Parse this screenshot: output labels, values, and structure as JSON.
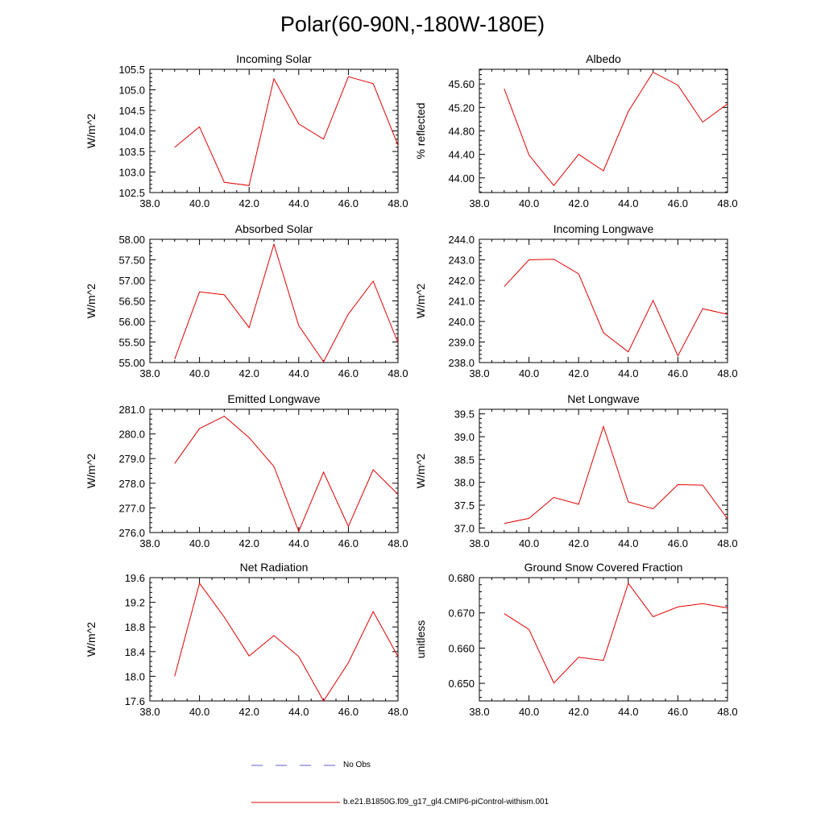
{
  "page_title": "Polar(60-90N,-180W-180E)",
  "legend": {
    "no_obs_label": "No Obs",
    "model_label": "b.e21.B1850G.f09_g17_gl4.CMIP6-piControl-withism.001",
    "no_obs_color": "#5b5bd6",
    "model_color": "#e00000"
  },
  "chart_data": [
    {
      "type": "line",
      "title": "Incoming Solar",
      "xlabel": "",
      "ylabel": "W/m^2",
      "xlim": [
        38,
        48
      ],
      "ylim": [
        102.5,
        105.5
      ],
      "x_ticks": [
        "38.0",
        "40.0",
        "42.0",
        "44.0",
        "46.0",
        "48.0"
      ],
      "y_ticks": [
        "102.5",
        "103.0",
        "103.5",
        "104.0",
        "104.5",
        "105.0",
        "105.5"
      ],
      "series": [
        {
          "name": "b.e21.B1850G.f09_g17_gl4.CMIP6-piControl-withism.001",
          "x": [
            39,
            40,
            41,
            42,
            43,
            44,
            45,
            46,
            47,
            48
          ],
          "values": [
            103.6,
            104.1,
            102.75,
            102.67,
            105.27,
            104.17,
            103.8,
            105.32,
            105.15,
            103.65
          ]
        }
      ]
    },
    {
      "type": "line",
      "title": "Albedo",
      "xlabel": "",
      "ylabel": "% reflected",
      "xlim": [
        38,
        48
      ],
      "ylim": [
        43.75,
        45.85
      ],
      "x_ticks": [
        "38.0",
        "40.0",
        "42.0",
        "44.0",
        "46.0",
        "48.0"
      ],
      "y_ticks": [
        "44.00",
        "44.40",
        "44.80",
        "45.20",
        "45.60"
      ],
      "series": [
        {
          "name": "b.e21.B1850G.f09_g17_gl4.CMIP6-piControl-withism.001",
          "x": [
            39,
            40,
            41,
            42,
            43,
            44,
            45,
            46,
            47,
            48
          ],
          "values": [
            45.52,
            44.39,
            43.87,
            44.4,
            44.12,
            45.13,
            45.8,
            45.58,
            44.95,
            45.26
          ]
        }
      ]
    },
    {
      "type": "line",
      "title": "Absorbed Solar",
      "xlabel": "",
      "ylabel": "W/m^2",
      "xlim": [
        38,
        48
      ],
      "ylim": [
        55.0,
        58.0
      ],
      "x_ticks": [
        "38.0",
        "40.0",
        "42.0",
        "44.0",
        "46.0",
        "48.0"
      ],
      "y_ticks": [
        "55.00",
        "55.50",
        "56.00",
        "56.50",
        "57.00",
        "57.50",
        "58.00"
      ],
      "series": [
        {
          "name": "b.e21.B1850G.f09_g17_gl4.CMIP6-piControl-withism.001",
          "x": [
            39,
            40,
            41,
            42,
            43,
            44,
            45,
            46,
            47,
            48
          ],
          "values": [
            55.08,
            56.72,
            56.65,
            55.85,
            57.88,
            55.9,
            55.02,
            56.18,
            56.98,
            55.48
          ]
        }
      ]
    },
    {
      "type": "line",
      "title": "Incoming Longwave",
      "xlabel": "",
      "ylabel": "W/m^2",
      "xlim": [
        38,
        48
      ],
      "ylim": [
        238.0,
        244.0
      ],
      "x_ticks": [
        "38.0",
        "40.0",
        "42.0",
        "44.0",
        "46.0",
        "48.0"
      ],
      "y_ticks": [
        "238.0",
        "239.0",
        "240.0",
        "241.0",
        "242.0",
        "243.0",
        "244.0"
      ],
      "series": [
        {
          "name": "b.e21.B1850G.f09_g17_gl4.CMIP6-piControl-withism.001",
          "x": [
            39,
            40,
            41,
            42,
            43,
            44,
            45,
            46,
            47,
            48
          ],
          "values": [
            241.7,
            243.0,
            243.03,
            242.32,
            239.45,
            238.52,
            241.02,
            238.33,
            240.62,
            240.35
          ]
        }
      ]
    },
    {
      "type": "line",
      "title": "Emitted Longwave",
      "xlabel": "",
      "ylabel": "W/m^2",
      "xlim": [
        38,
        48
      ],
      "ylim": [
        276.0,
        281.0
      ],
      "x_ticks": [
        "38.0",
        "40.0",
        "42.0",
        "44.0",
        "46.0",
        "48.0"
      ],
      "y_ticks": [
        "276.0",
        "277.0",
        "278.0",
        "279.0",
        "280.0",
        "281.0"
      ],
      "series": [
        {
          "name": "b.e21.B1850G.f09_g17_gl4.CMIP6-piControl-withism.001",
          "x": [
            39,
            40,
            41,
            42,
            43,
            44,
            45,
            46,
            47,
            48
          ],
          "values": [
            278.8,
            280.22,
            280.72,
            279.85,
            278.68,
            276.05,
            278.45,
            276.25,
            278.55,
            277.55
          ]
        }
      ]
    },
    {
      "type": "line",
      "title": "Net Longwave",
      "xlabel": "",
      "ylabel": "W/m^2",
      "xlim": [
        38,
        48
      ],
      "ylim": [
        36.9,
        39.6
      ],
      "x_ticks": [
        "38.0",
        "40.0",
        "42.0",
        "44.0",
        "46.0",
        "48.0"
      ],
      "y_ticks": [
        "37.0",
        "37.5",
        "38.0",
        "38.5",
        "39.0",
        "39.5"
      ],
      "series": [
        {
          "name": "b.e21.B1850G.f09_g17_gl4.CMIP6-piControl-withism.001",
          "x": [
            39,
            40,
            41,
            42,
            43,
            44,
            45,
            46,
            47,
            48
          ],
          "values": [
            37.1,
            37.21,
            37.67,
            37.52,
            39.22,
            37.57,
            37.42,
            37.95,
            37.94,
            37.2
          ]
        }
      ]
    },
    {
      "type": "line",
      "title": "Net Radiation",
      "xlabel": "",
      "ylabel": "W/m^2",
      "xlim": [
        38,
        48
      ],
      "ylim": [
        17.6,
        19.6
      ],
      "x_ticks": [
        "38.0",
        "40.0",
        "42.0",
        "44.0",
        "46.0",
        "48.0"
      ],
      "y_ticks": [
        "17.6",
        "18.0",
        "18.4",
        "18.8",
        "19.2",
        "19.6"
      ],
      "series": [
        {
          "name": "b.e21.B1850G.f09_g17_gl4.CMIP6-piControl-withism.001",
          "x": [
            39,
            40,
            41,
            42,
            43,
            44,
            45,
            46,
            47,
            48
          ],
          "values": [
            18.0,
            19.51,
            18.96,
            18.33,
            18.66,
            18.32,
            17.6,
            18.22,
            19.05,
            18.32
          ]
        }
      ]
    },
    {
      "type": "line",
      "title": "Ground Snow Covered Fraction",
      "xlabel": "",
      "ylabel": "unitless",
      "xlim": [
        38,
        48
      ],
      "ylim": [
        0.645,
        0.68
      ],
      "x_ticks": [
        "38.0",
        "40.0",
        "42.0",
        "44.0",
        "46.0",
        "48.0"
      ],
      "y_ticks": [
        "0.650",
        "0.660",
        "0.670",
        "0.680"
      ],
      "series": [
        {
          "name": "b.e21.B1850G.f09_g17_gl4.CMIP6-piControl-withism.001",
          "x": [
            39,
            40,
            41,
            42,
            43,
            44,
            45,
            46,
            47,
            48
          ],
          "values": [
            0.6698,
            0.6653,
            0.6501,
            0.6574,
            0.6565,
            0.6784,
            0.6689,
            0.6717,
            0.6726,
            0.6714
          ]
        }
      ]
    }
  ]
}
